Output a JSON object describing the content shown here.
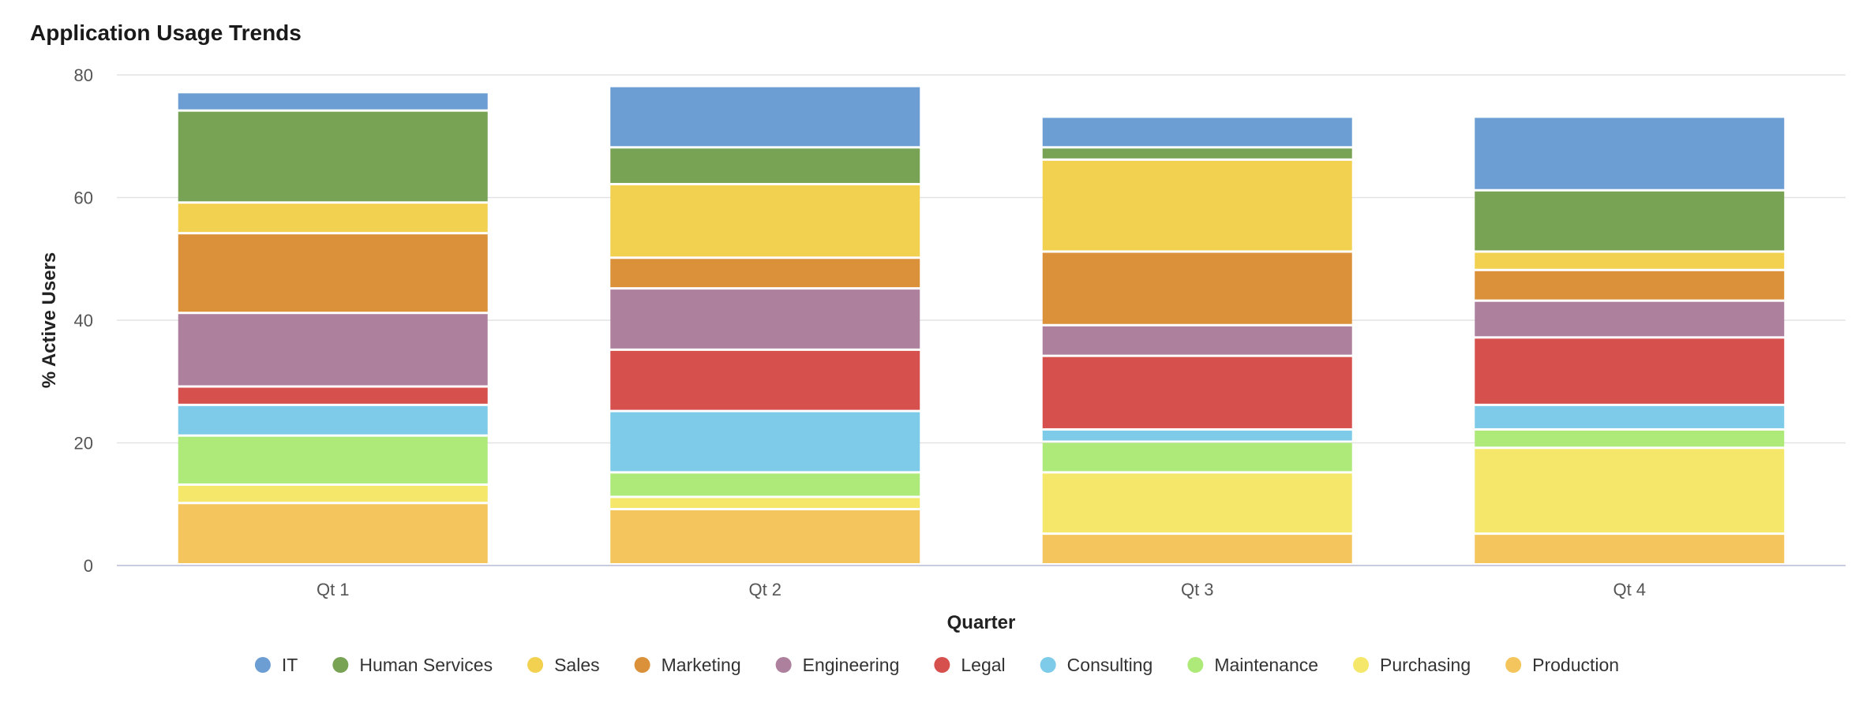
{
  "chart_data": {
    "type": "bar",
    "stacked": true,
    "title": "Application Usage Trends",
    "xlabel": "Quarter",
    "ylabel": "% Active Users",
    "ylim": [
      0,
      80
    ],
    "yticks": [
      0,
      20,
      40,
      60,
      80
    ],
    "grid": true,
    "legend_position": "bottom",
    "categories": [
      "Qt 1",
      "Qt 2",
      "Qt 3",
      "Qt 4"
    ],
    "series": [
      {
        "name": "Production",
        "color": "#f4c55c",
        "values": [
          10,
          9,
          5,
          5
        ]
      },
      {
        "name": "Purchasing",
        "color": "#f5e76a",
        "values": [
          3,
          2,
          10,
          14
        ]
      },
      {
        "name": "Maintenance",
        "color": "#aeea7a",
        "values": [
          8,
          4,
          5,
          3
        ]
      },
      {
        "name": "Consulting",
        "color": "#7dcbe8",
        "values": [
          5,
          10,
          2,
          4
        ]
      },
      {
        "name": "Legal",
        "color": "#d6504e",
        "values": [
          3,
          10,
          12,
          11
        ]
      },
      {
        "name": "Engineering",
        "color": "#ad809e",
        "values": [
          12,
          10,
          5,
          6
        ]
      },
      {
        "name": "Marketing",
        "color": "#da913a",
        "values": [
          13,
          5,
          12,
          5
        ]
      },
      {
        "name": "Sales",
        "color": "#f2d150",
        "values": [
          5,
          12,
          15,
          3
        ]
      },
      {
        "name": "Human Services",
        "color": "#78a354",
        "values": [
          15,
          6,
          2,
          10
        ]
      },
      {
        "name": "IT",
        "color": "#6d9ed3",
        "values": [
          3,
          10,
          5,
          12
        ]
      }
    ],
    "legend_order": [
      "IT",
      "Human Services",
      "Sales",
      "Marketing",
      "Engineering",
      "Legal",
      "Consulting",
      "Maintenance",
      "Purchasing",
      "Production"
    ]
  }
}
